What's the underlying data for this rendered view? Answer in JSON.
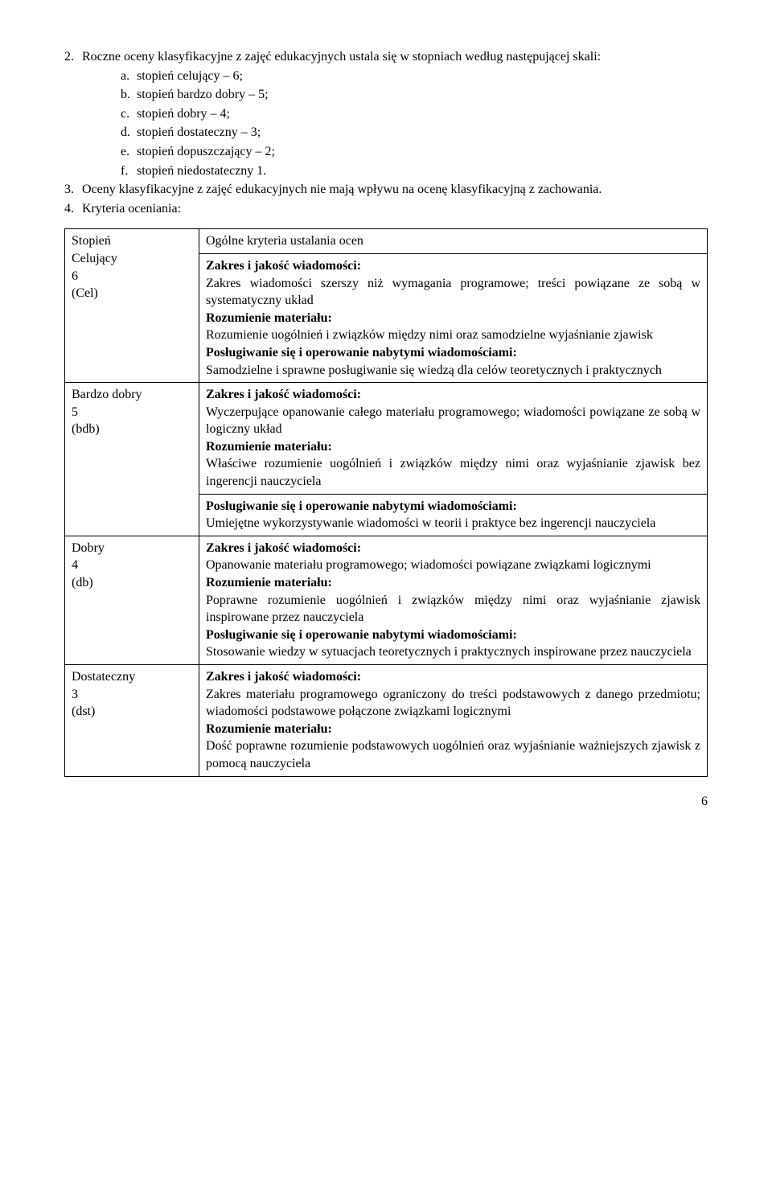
{
  "intro": {
    "item2_num": "2.",
    "item2_text": "Roczne oceny klasyfikacyjne z zajęć edukacyjnych ustala się w stopniach według następującej skali:",
    "sub": [
      {
        "l": "a.",
        "t": "stopień celujący – 6;"
      },
      {
        "l": "b.",
        "t": "stopień bardzo dobry – 5;"
      },
      {
        "l": "c.",
        "t": "stopień dobry – 4;"
      },
      {
        "l": "d.",
        "t": "stopień dostateczny – 3;"
      },
      {
        "l": "e.",
        "t": "stopień dopuszczający – 2;"
      },
      {
        "l": "f.",
        "t": "stopień niedostateczny 1."
      }
    ],
    "item3_num": "3.",
    "item3_text": "Oceny klasyfikacyjne z zajęć edukacyjnych nie mają wpływu na ocenę klasyfikacyjną z zachowania.",
    "item4_num": "4.",
    "item4_text": "Kryteria oceniania:"
  },
  "table": {
    "h_left": "Stopień",
    "h_right": "Ogólne kryteria ustalania ocen",
    "cel": {
      "name": "Celujący",
      "num": "6",
      "abbr": "(Cel)",
      "zh": "Zakres i jakość wiadomości:",
      "zt": "Zakres wiadomości szerszy niż wymagania programowe; treści powiązane ze sobą w systematyczny układ",
      "rh": "Rozumienie materiału:",
      "rt": "Rozumienie uogólnień i związków między nimi oraz samodzielne wyjaśnianie zjawisk",
      "ph": "Posługiwanie się i operowanie nabytymi wiadomościami:",
      "pt": "Samodzielne i sprawne posługiwanie się wiedzą dla celów teoretycznych i praktycznych"
    },
    "bdb": {
      "name": "Bardzo dobry",
      "num": "5",
      "abbr": "(bdb)",
      "zh": "Zakres i jakość wiadomości:",
      "zt": "Wyczerpujące opanowanie całego materiału programowego; wiadomości powiązane ze sobą w logiczny układ",
      "rh": "Rozumienie materiału:",
      "rt": "Właściwe rozumienie uogólnień i związków między nimi oraz wyjaśnianie zjawisk bez ingerencji nauczyciela",
      "ph": "Posługiwanie się i operowanie nabytymi wiadomościami:",
      "pt": "Umiejętne wykorzystywanie wiadomości w teorii i praktyce bez ingerencji nauczyciela"
    },
    "db": {
      "name": "Dobry",
      "num": "4",
      "abbr": "(db)",
      "zh": "Zakres i jakość wiadomości:",
      "zt": "Opanowanie materiału programowego; wiadomości powiązane związkami logicznymi",
      "rh": "Rozumienie materiału:",
      "rt": "Poprawne rozumienie uogólnień i związków między nimi oraz wyjaśnianie zjawisk inspirowane przez nauczyciela",
      "ph": "Posługiwanie się i operowanie nabytymi wiadomościami:",
      "pt": "Stosowanie wiedzy w sytuacjach teoretycznych i praktycznych inspirowane przez nauczyciela"
    },
    "dst": {
      "name": "Dostateczny",
      "num": "3",
      "abbr": "(dst)",
      "zh": "Zakres i jakość wiadomości:",
      "zt": "Zakres materiału programowego ograniczony do treści podstawowych z danego przedmiotu; wiadomości podstawowe połączone związkami logicznymi",
      "rh": "Rozumienie materiału:",
      "rt": "Dość poprawne rozumienie podstawowych uogólnień oraz wyjaśnianie ważniejszych zjawisk z pomocą nauczyciela"
    }
  },
  "page_number": "6"
}
